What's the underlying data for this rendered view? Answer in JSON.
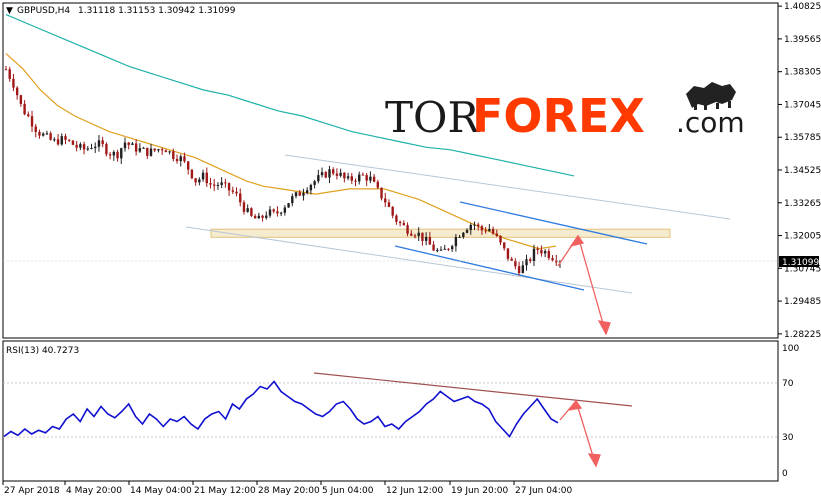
{
  "header": {
    "symbol": "GBPUSD,H4",
    "ohlc": "1.31118 1.31153 1.30942 1.31099",
    "menu_glyph": "▼"
  },
  "logo": {
    "part1": "TOR",
    "part2": "FOREX",
    "part3": ".com",
    "color_dark": "#1a1a1a",
    "color_accent": "#ff3a00"
  },
  "price_axis": {
    "labels": [
      "1.40825",
      "1.39565",
      "1.38305",
      "1.37045",
      "1.35785",
      "1.34525",
      "1.33265",
      "1.32005",
      "1.30745",
      "1.29485",
      "1.28225"
    ],
    "current_price": "1.31099"
  },
  "rsi_panel": {
    "title": "RSI(13) 40.7273",
    "levels": [
      "100",
      "70",
      "30",
      "0"
    ]
  },
  "time_axis": {
    "labels": [
      "27 Apr 2018",
      "4 May 20:00",
      "14 May 04:00",
      "21 May 12:00",
      "28 May 20:00",
      "5 Jun 04:00",
      "12 Jun 12:00",
      "19 Jun 20:00",
      "27 Jun 04:00"
    ]
  },
  "chart_data": {
    "type": "candlestick",
    "symbol": "GBPUSD",
    "timeframe": "H4",
    "ylim": [
      1.2822,
      1.4083
    ],
    "price_path": [
      1.384,
      1.378,
      1.369,
      1.365,
      1.36,
      1.358,
      1.356,
      1.357,
      1.356,
      1.354,
      1.353,
      1.355,
      1.355,
      1.352,
      1.351,
      1.356,
      1.354,
      1.353,
      1.352,
      1.353,
      1.354,
      1.351,
      1.35,
      1.346,
      1.341,
      1.343,
      1.339,
      1.34,
      1.338,
      1.336,
      1.331,
      1.327,
      1.326,
      1.329,
      1.328,
      1.331,
      1.334,
      1.336,
      1.339,
      1.341,
      1.343,
      1.345,
      1.344,
      1.341,
      1.342,
      1.343,
      1.342,
      1.337,
      1.333,
      1.327,
      1.324,
      1.322,
      1.321,
      1.318,
      1.315,
      1.313,
      1.316,
      1.32,
      1.323,
      1.325,
      1.322,
      1.323,
      1.319,
      1.314,
      1.309,
      1.307,
      1.31,
      1.315,
      1.314,
      1.312,
      1.311
    ],
    "ma_fast": [
      1.39,
      1.384,
      1.376,
      1.37,
      1.366,
      1.363,
      1.36,
      1.358,
      1.356,
      1.354,
      1.352,
      1.35,
      1.347,
      1.344,
      1.341,
      1.339,
      1.338,
      1.337,
      1.336,
      1.337,
      1.338,
      1.338,
      1.338,
      1.336,
      1.334,
      1.331,
      1.328,
      1.325,
      1.322,
      1.319,
      1.317,
      1.315,
      1.316
    ],
    "ma_slow": [
      1.405,
      1.401,
      1.397,
      1.393,
      1.389,
      1.385,
      1.382,
      1.379,
      1.376,
      1.374,
      1.371,
      1.368,
      1.366,
      1.363,
      1.36,
      1.358,
      1.356,
      1.354,
      1.353,
      1.351,
      1.349,
      1.347,
      1.345,
      1.343
    ],
    "support_zone": [
      1.3194,
      1.3225
    ],
    "rsi": {
      "name": "RSI(13)",
      "last": 40.7273,
      "ylim": [
        0,
        100
      ],
      "levels": [
        70,
        30
      ],
      "values": [
        30,
        34,
        31,
        36,
        32,
        35,
        33,
        38,
        36,
        44,
        48,
        42,
        52,
        46,
        54,
        48,
        45,
        50,
        56,
        46,
        40,
        48,
        44,
        38,
        44,
        42,
        46,
        40,
        36,
        44,
        48,
        50,
        44,
        56,
        52,
        60,
        64,
        70,
        68,
        74,
        66,
        62,
        58,
        56,
        52,
        48,
        46,
        50,
        56,
        58,
        52,
        44,
        40,
        42,
        46,
        38,
        40,
        36,
        42,
        46,
        50,
        56,
        60,
        66,
        62,
        58,
        60,
        62,
        58,
        56,
        52,
        42,
        36,
        30,
        40,
        48,
        54,
        60,
        52,
        44,
        41
      ]
    }
  }
}
